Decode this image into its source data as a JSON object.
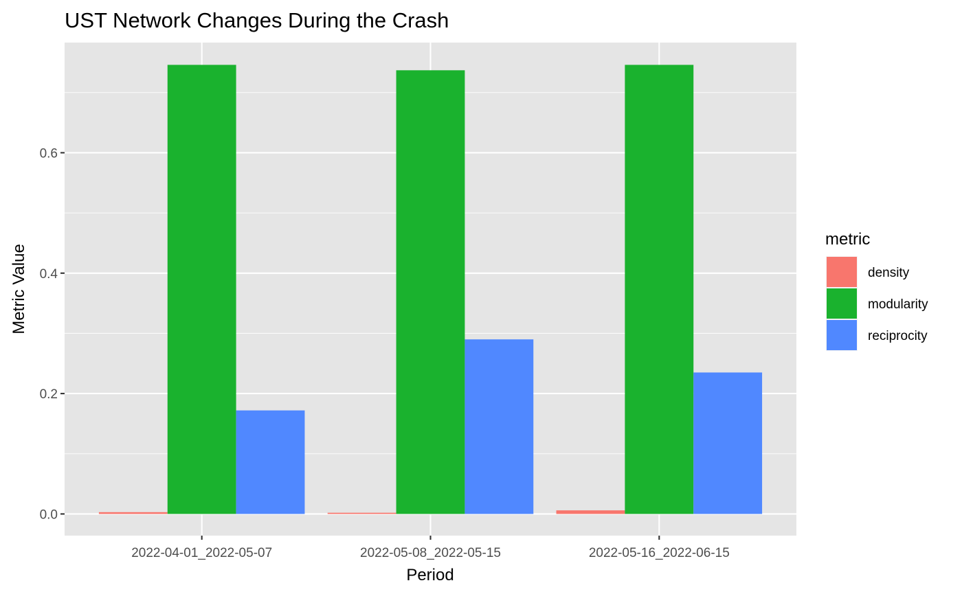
{
  "chart_data": {
    "type": "bar",
    "title": "UST Network Changes During the Crash",
    "xlabel": "Period",
    "ylabel": "Metric Value",
    "categories": [
      "2022-04-01_2022-05-07",
      "2022-05-08_2022-05-15",
      "2022-05-16_2022-06-15"
    ],
    "series": [
      {
        "name": "density",
        "color": "#F8766D",
        "values": [
          0.003,
          0.002,
          0.006
        ]
      },
      {
        "name": "modularity",
        "color": "#1AB22E",
        "values": [
          0.746,
          0.737,
          0.746
        ]
      },
      {
        "name": "reciprocity",
        "color": "#5088FF",
        "values": [
          0.172,
          0.29,
          0.235
        ]
      }
    ],
    "ylim": [
      -0.036,
      0.783
    ],
    "yticks": [
      0.0,
      0.2,
      0.4,
      0.6
    ],
    "ytick_labels": [
      "0.0",
      "0.2",
      "0.4",
      "0.6"
    ],
    "grid": true,
    "legend": {
      "title": "metric",
      "position": "right"
    },
    "panel_background": "#E5E5E5"
  }
}
